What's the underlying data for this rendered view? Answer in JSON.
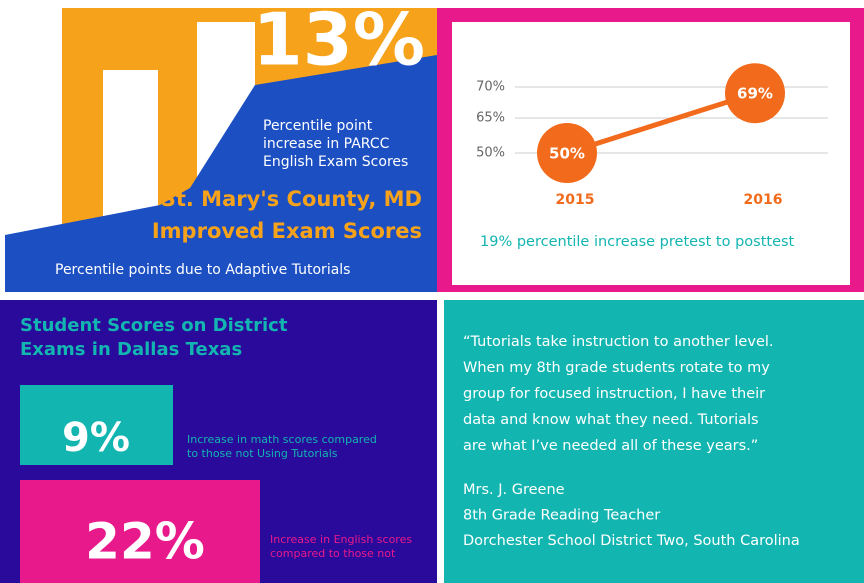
{
  "top_left": {
    "big_number": "13%",
    "description": [
      "Percentile point",
      "increase in PARCC",
      "English Exam Scores"
    ],
    "headline": [
      "St. Mary's County, MD",
      "Improved Exam Scores"
    ],
    "footnote": "Percentile points due to Adaptive Tutorials"
  },
  "top_right": {
    "chart": {
      "type": "line",
      "categories": [
        "2015",
        "2016"
      ],
      "values": [
        50,
        69
      ],
      "value_labels": [
        "50%",
        "69%"
      ],
      "yticks": [
        {
          "value": 70,
          "label": "70%"
        },
        {
          "value": 65,
          "label": "65%"
        },
        {
          "value": 50,
          "label": "50%"
        }
      ],
      "color": "#f26a1b"
    },
    "caption": "19% percentile increase pretest to posttest"
  },
  "bottom_left": {
    "title": [
      "Student Scores on District",
      "Exams in Dallas Texas"
    ],
    "stats": [
      {
        "value": "9%",
        "text": [
          "Increase in math scores compared",
          "to those not Using Tutorials"
        ]
      },
      {
        "value": "22%",
        "text": [
          "Increase in English scores",
          "compared to those not"
        ]
      }
    ]
  },
  "bottom_right": {
    "quote": [
      "“Tutorials take instruction to another level.",
      "When my 8th grade students rotate to my",
      "group for focused instruction, I have their",
      "data and know what they need. Tutorials",
      "are what I’ve needed all of these years.”"
    ],
    "attribution": [
      "Mrs. J. Greene",
      "8th Grade Reading Teacher",
      "Dorchester School District Two, South Carolina"
    ]
  }
}
